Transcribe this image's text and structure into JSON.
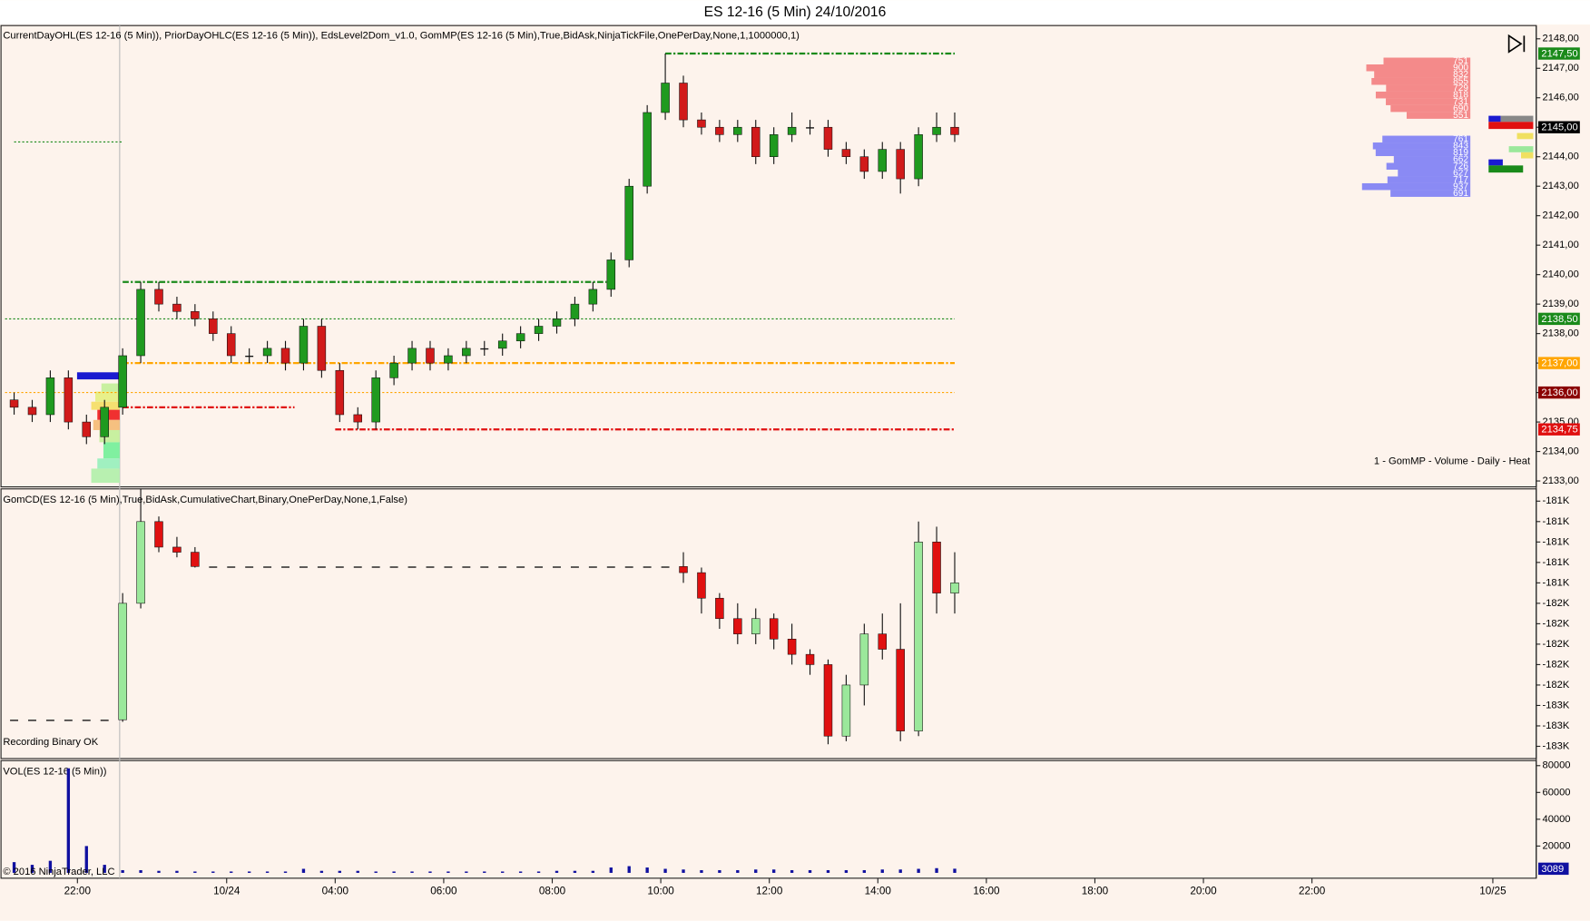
{
  "title": "ES 12-16 (5 Min)  24/10/2016",
  "footer": "© 2016 NinjaTrader, LLC",
  "chart_data": [
    {
      "type": "candlestick",
      "title": "CurrentDayOHL(ES 12-16 (5 Min)), PriorDayOHLC(ES 12-16 (5 Min)), EdsLevel2Dom_v1.0, GomMP(ES 12-16 (5 Min),True,BidAsk,NinjaTickFile,OnePerDay,None,1,1000000,1)",
      "annotation": "1 - GomMP - Volume - Daily - Heat",
      "up_color": "#1f9a1f",
      "down_color": "#d11a1a",
      "x": [
        2,
        6,
        10,
        14,
        18,
        22,
        26,
        30,
        34,
        38,
        42,
        46,
        50,
        54,
        58,
        62,
        66,
        70,
        74,
        78,
        82,
        86,
        90,
        94,
        98,
        102,
        106,
        110,
        114,
        118,
        122,
        126,
        130,
        134,
        138,
        142,
        146,
        150,
        154,
        158,
        162,
        166,
        170,
        174,
        178,
        182,
        186,
        190,
        194,
        198,
        202,
        206,
        210
      ],
      "open": [
        2135.75,
        2135.5,
        2135.25,
        2136.5,
        2135,
        2134.5,
        2135.5,
        2137.25,
        2139.5,
        2139,
        2138.75,
        2138.5,
        2138,
        2137.25,
        2137.25,
        2137.5,
        2137,
        2138.25,
        2136.75,
        2135.25,
        2135,
        2136.5,
        2137,
        2137.5,
        2137,
        2137.25,
        2137.5,
        2137.5,
        2137.75,
        2138,
        2138.25,
        2138.5,
        2139,
        2139.5,
        2140.5,
        2143,
        2145.5,
        2146.5,
        2145.25,
        2145,
        2144.75,
        2145,
        2144,
        2144.75,
        2145,
        2145,
        2144.25,
        2144,
        2143.5,
        2144.25,
        2143.25,
        2144.75,
        2145
      ],
      "high": [
        2136,
        2135.75,
        2136.75,
        2136.75,
        2135.25,
        2135.75,
        2137.5,
        2139.75,
        2139.75,
        2139.25,
        2139,
        2138.75,
        2138.25,
        2137.5,
        2137.75,
        2137.75,
        2138.5,
        2138.5,
        2137,
        2135.5,
        2136.75,
        2137.25,
        2137.75,
        2137.75,
        2137.5,
        2137.75,
        2137.75,
        2138,
        2138.25,
        2138.5,
        2138.75,
        2139.25,
        2139.75,
        2140.75,
        2143.25,
        2145.75,
        2147.5,
        2146.75,
        2145.5,
        2145.25,
        2145.25,
        2145.25,
        2145,
        2145.5,
        2145.25,
        2145.25,
        2144.5,
        2144.25,
        2144.5,
        2144.5,
        2145,
        2145.5,
        2145.5
      ],
      "low": [
        2135.25,
        2135,
        2135,
        2134.75,
        2134.25,
        2134.25,
        2135.25,
        2137,
        2138.75,
        2138.5,
        2138.25,
        2137.75,
        2137,
        2137,
        2137,
        2136.75,
        2136.75,
        2136.5,
        2135,
        2134.75,
        2134.75,
        2136.25,
        2136.75,
        2136.75,
        2136.75,
        2137,
        2137.25,
        2137.25,
        2137.5,
        2137.75,
        2138,
        2138.25,
        2138.75,
        2139.25,
        2140.25,
        2142.75,
        2145.25,
        2145,
        2144.75,
        2144.5,
        2144.5,
        2143.75,
        2143.75,
        2144.5,
        2144.75,
        2144,
        2143.75,
        2143.25,
        2143.25,
        2142.75,
        2143,
        2144.5,
        2144.5
      ],
      "close": [
        2135.5,
        2135.25,
        2136.5,
        2135,
        2134.5,
        2135.5,
        2137.25,
        2139.5,
        2139,
        2138.75,
        2138.5,
        2138,
        2137.25,
        2137.25,
        2137.5,
        2137,
        2138.25,
        2136.75,
        2135.25,
        2135,
        2136.5,
        2137,
        2137.5,
        2137,
        2137.25,
        2137.5,
        2137.5,
        2137.75,
        2138,
        2138.25,
        2138.5,
        2139,
        2139.5,
        2140.5,
        2143,
        2145.5,
        2146.5,
        2145.25,
        2145,
        2144.75,
        2145,
        2144,
        2144.75,
        2145,
        2145,
        2144.25,
        2144,
        2143.5,
        2144.25,
        2143.25,
        2144.75,
        2145,
        2144.75
      ],
      "ylim": [
        2132.8,
        2148.45
      ],
      "yticks": [
        {
          "value": 2133,
          "label": "2133,00"
        },
        {
          "value": 2134,
          "label": "2134,00"
        },
        {
          "value": 2135,
          "label": "2135,00"
        },
        {
          "value": 2136,
          "label": "2136,00"
        },
        {
          "value": 2137,
          "label": "2137,00"
        },
        {
          "value": 2138,
          "label": "2138,00"
        },
        {
          "value": 2139,
          "label": "2139,00"
        },
        {
          "value": 2140,
          "label": "2140,00"
        },
        {
          "value": 2141,
          "label": "2141,00"
        },
        {
          "value": 2142,
          "label": "2142,00"
        },
        {
          "value": 2143,
          "label": "2143,00"
        },
        {
          "value": 2144,
          "label": "2144,00"
        },
        {
          "value": 2145,
          "label": "2145,00"
        },
        {
          "value": 2146,
          "label": "2146,00"
        },
        {
          "value": 2147,
          "label": "2147,00"
        },
        {
          "value": 2148,
          "label": "2148,00"
        }
      ],
      "levels": [
        {
          "value": 2147.5,
          "label": "2147,50",
          "color": "#1a8a1a",
          "tag_color": "#1a8a1a",
          "x": [
            146,
            210
          ],
          "style": "dashdot"
        },
        {
          "value": 2145,
          "label": "2145,00",
          "tag_color": "#000000"
        },
        {
          "value": 2144.5,
          "color": "#1a8a1a",
          "x": [
            2,
            26
          ],
          "style": "dot"
        },
        {
          "value": 2139.75,
          "color": "#1a8a1a",
          "x": [
            26,
            133
          ],
          "style": "dashdot"
        },
        {
          "value": 2138.5,
          "label": "2138,50",
          "color": "#1a8a1a",
          "tag_color": "#1a8a1a",
          "x": [
            0,
            210
          ],
          "style": "dot"
        },
        {
          "value": 2137,
          "label": "2137,00",
          "color": "#ffa500",
          "tag_color": "#ffa500",
          "x": [
            26,
            210
          ],
          "style": "dashdot"
        },
        {
          "value": 2136,
          "label": "2136,00",
          "color": "#ffa500",
          "tag_color": "#8b0000",
          "x": [
            0,
            210
          ],
          "style": "dot"
        },
        {
          "value": 2135.5,
          "color": "#e01010",
          "x": [
            26,
            64
          ],
          "style": "dashdot"
        },
        {
          "value": 2134.75,
          "label": "2134,75",
          "color": "#e01010",
          "tag_color": "#e01010",
          "x": [
            73,
            210
          ],
          "style": "dashdot"
        }
      ],
      "dom": {
        "ask_color": "#f48a8a",
        "bid_color": "#8a8af4",
        "asks": [
          751,
          900,
          832,
          855,
          729,
          818,
          731,
          690,
          551
        ],
        "bids": [
          761,
          843,
          819,
          662,
          726,
          627,
          717,
          937,
          691
        ]
      }
    },
    {
      "type": "candlestick",
      "title": "GomCD(ES 12-16 (5 Min),True,BidAsk,CumulativeChart,Binary,OnePerDay,None,1,False)",
      "annotation": "Recording Binary OK",
      "up_color": "#9be89b",
      "down_color": "#e01010",
      "x": [
        2,
        6,
        10,
        14,
        18,
        22,
        26,
        30,
        34,
        38,
        42,
        46,
        50,
        54,
        58,
        62,
        66,
        70,
        74,
        78,
        82,
        86,
        90,
        94,
        98,
        102,
        106,
        110,
        114,
        118,
        122,
        126,
        130,
        134,
        138,
        142,
        146,
        150,
        154,
        158,
        162,
        166,
        170,
        174,
        178,
        182,
        186,
        190,
        194,
        198,
        202,
        206,
        210
      ],
      "open": [
        -182740,
        -182740,
        -182740,
        -182740,
        -182740,
        -182740,
        -182740,
        -181600,
        -180800,
        -181050,
        -181100,
        -181240,
        -181240,
        -181240,
        -181240,
        -181240,
        -181240,
        -181240,
        -181240,
        -181240,
        -181240,
        -181240,
        -181240,
        -181240,
        -181240,
        -181240,
        -181240,
        -181240,
        -181240,
        -181240,
        -181240,
        -181240,
        -181240,
        -181240,
        -181240,
        -181240,
        -181240,
        -181240,
        -181300,
        -181550,
        -181750,
        -181900,
        -181750,
        -181950,
        -182100,
        -182200,
        -182900,
        -182400,
        -181900,
        -182050,
        -182850,
        -181000,
        -181500
      ],
      "high": [
        -182740,
        -182740,
        -182740,
        -182740,
        -182740,
        -182740,
        -181500,
        -180480,
        -180750,
        -180950,
        -181050,
        -181240,
        -181240,
        -181240,
        -181240,
        -181240,
        -181240,
        -181240,
        -181240,
        -181240,
        -181240,
        -181240,
        -181240,
        -181240,
        -181240,
        -181240,
        -181240,
        -181240,
        -181240,
        -181240,
        -181240,
        -181240,
        -181240,
        -181240,
        -181240,
        -181240,
        -181240,
        -181100,
        -181250,
        -181500,
        -181600,
        -181650,
        -181700,
        -181800,
        -182050,
        -182150,
        -182300,
        -181800,
        -181700,
        -181600,
        -180800,
        -180850,
        -181100
      ],
      "low": [
        -182740,
        -182740,
        -182740,
        -182740,
        -182740,
        -182740,
        -182760,
        -181650,
        -181100,
        -181150,
        -181250,
        -181240,
        -181240,
        -181240,
        -181240,
        -181240,
        -181240,
        -181240,
        -181240,
        -181240,
        -181240,
        -181240,
        -181240,
        -181240,
        -181240,
        -181240,
        -181240,
        -181240,
        -181240,
        -181240,
        -181240,
        -181240,
        -181240,
        -181240,
        -181240,
        -181240,
        -181240,
        -181400,
        -181700,
        -181850,
        -182000,
        -182000,
        -182050,
        -182200,
        -182300,
        -182980,
        -182950,
        -182600,
        -182150,
        -182950,
        -182900,
        -181700,
        -181700
      ],
      "close": [
        -182740,
        -182740,
        -182740,
        -182740,
        -182740,
        -182740,
        -181600,
        -180800,
        -181050,
        -181100,
        -181240,
        -181240,
        -181240,
        -181240,
        -181240,
        -181240,
        -181240,
        -181240,
        -181240,
        -181240,
        -181240,
        -181240,
        -181240,
        -181240,
        -181240,
        -181240,
        -181240,
        -181240,
        -181240,
        -181240,
        -181240,
        -181240,
        -181240,
        -181240,
        -181240,
        -181240,
        -181240,
        -181300,
        -181550,
        -181750,
        -181900,
        -181750,
        -181950,
        -182100,
        -182200,
        -182900,
        -182400,
        -181900,
        -182050,
        -182850,
        -181000,
        -181500,
        -181400
      ],
      "ylim": [
        -183120,
        -180490
      ],
      "yticks": [
        {
          "value": -180600,
          "label": "-181K"
        },
        {
          "value": -180800,
          "label": "-181K"
        },
        {
          "value": -181000,
          "label": "-181K"
        },
        {
          "value": -181200,
          "label": "-181K"
        },
        {
          "value": -181400,
          "label": "-181K"
        },
        {
          "value": -181600,
          "label": "-182K"
        },
        {
          "value": -181800,
          "label": "-182K"
        },
        {
          "value": -182000,
          "label": "-182K"
        },
        {
          "value": -182200,
          "label": "-182K"
        },
        {
          "value": -182400,
          "label": "-182K"
        },
        {
          "value": -182600,
          "label": "-183K"
        },
        {
          "value": -182800,
          "label": "-183K"
        },
        {
          "value": -183000,
          "label": "-183K"
        }
      ]
    },
    {
      "type": "bar",
      "title": "VOL(ES 12-16 (5 Min))",
      "color": "#1010a0",
      "x": [
        2,
        6,
        10,
        14,
        18,
        22,
        26,
        30,
        34,
        38,
        42,
        46,
        50,
        54,
        58,
        62,
        66,
        70,
        74,
        78,
        82,
        86,
        90,
        94,
        98,
        102,
        106,
        110,
        114,
        118,
        122,
        126,
        130,
        134,
        138,
        142,
        146,
        150,
        154,
        158,
        162,
        166,
        170,
        174,
        178,
        182,
        186,
        190,
        194,
        198,
        202,
        206,
        210
      ],
      "values": [
        8000,
        6000,
        9000,
        78000,
        20000,
        6000,
        2000,
        2000,
        1500,
        1500,
        1000,
        1000,
        1000,
        1000,
        1000,
        1000,
        3000,
        1500,
        1500,
        1500,
        1000,
        1000,
        1000,
        1000,
        1000,
        1000,
        1000,
        1000,
        1000,
        1000,
        1500,
        1500,
        1500,
        4000,
        5000,
        4000,
        3000,
        2500,
        2000,
        2000,
        2000,
        2500,
        2500,
        2000,
        2000,
        2000,
        2000,
        2000,
        2500,
        2500,
        3000,
        3500,
        3089
      ],
      "ylim": [
        -4000,
        83000
      ],
      "yticks": [
        20000,
        40000,
        60000,
        80000
      ],
      "xlim": [
        0,
        338.6
      ],
      "xticks": [
        {
          "value": 16,
          "label": "22:00"
        },
        {
          "value": 49,
          "label": "10/24"
        },
        {
          "value": 73,
          "label": "04:00"
        },
        {
          "value": 97,
          "label": "06:00"
        },
        {
          "value": 121,
          "label": "08:00"
        },
        {
          "value": 145,
          "label": "10:00"
        },
        {
          "value": 169,
          "label": "12:00"
        },
        {
          "value": 193,
          "label": "14:00"
        },
        {
          "value": 217,
          "label": "16:00"
        },
        {
          "value": 241,
          "label": "18:00"
        },
        {
          "value": 265,
          "label": "20:00"
        },
        {
          "value": 289,
          "label": "22:00"
        },
        {
          "value": 329,
          "label": "10/25"
        }
      ]
    }
  ]
}
